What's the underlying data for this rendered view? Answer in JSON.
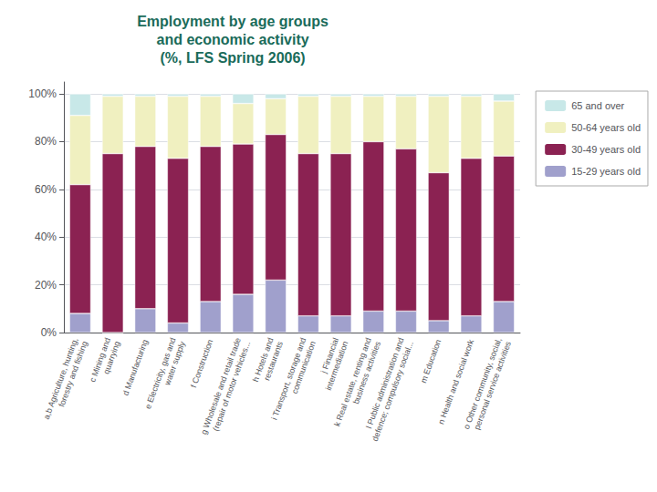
{
  "chart_data": {
    "type": "bar",
    "title": "Employment by age groups\nand economic activity\n(%, LFS Spring 2006)",
    "title_color": "#1a6b5a",
    "stacked": true,
    "categories": [
      "a,b Agriculture, hunting,\nforestry and fishing",
      "c Mining and\nquarrying",
      "d Manufacturing",
      "e Electricity, gas and\nwater supply",
      "f Construction",
      "g Wholesale and retail trade\n(repair of motor vehicles...",
      "h Hotels and\nrestaurants",
      "i Transport, storage and\ncommunication",
      "j Financial\nintermediation",
      "k Real estate, renting and\nbusiness activities",
      "l Public administration and\ndefence; compulsory social...",
      "m Education",
      "n Health and social work",
      "o Other community, social,\npersonal service activities"
    ],
    "series": [
      {
        "name": "15-29 years old",
        "color": "#a0a0cc",
        "values": [
          8,
          0,
          10,
          4,
          13,
          16,
          22,
          7,
          7,
          9,
          9,
          5,
          7,
          13
        ]
      },
      {
        "name": "30-49 years old",
        "color": "#8b2252",
        "values": [
          54,
          75,
          68,
          69,
          65,
          63,
          61,
          68,
          68,
          71,
          68,
          62,
          66,
          61
        ]
      },
      {
        "name": "50-64 years old",
        "color": "#f0f0c0",
        "values": [
          29,
          24,
          21,
          26,
          21,
          17,
          15,
          24,
          24,
          19,
          22,
          32,
          26,
          23
        ]
      },
      {
        "name": "65 and over",
        "color": "#c8e8e8",
        "values": [
          9,
          1,
          1,
          1,
          1,
          4,
          2,
          1,
          1,
          1,
          1,
          1,
          1,
          3
        ]
      }
    ],
    "ylim": [
      0,
      105
    ],
    "yticks": [
      {
        "value": 0,
        "label": "0%"
      },
      {
        "value": 20,
        "label": "20%"
      },
      {
        "value": 40,
        "label": "40%"
      },
      {
        "value": 60,
        "label": "60%"
      },
      {
        "value": 80,
        "label": "80%"
      },
      {
        "value": 100,
        "label": "100%"
      }
    ],
    "grid": true,
    "legend": "right"
  }
}
